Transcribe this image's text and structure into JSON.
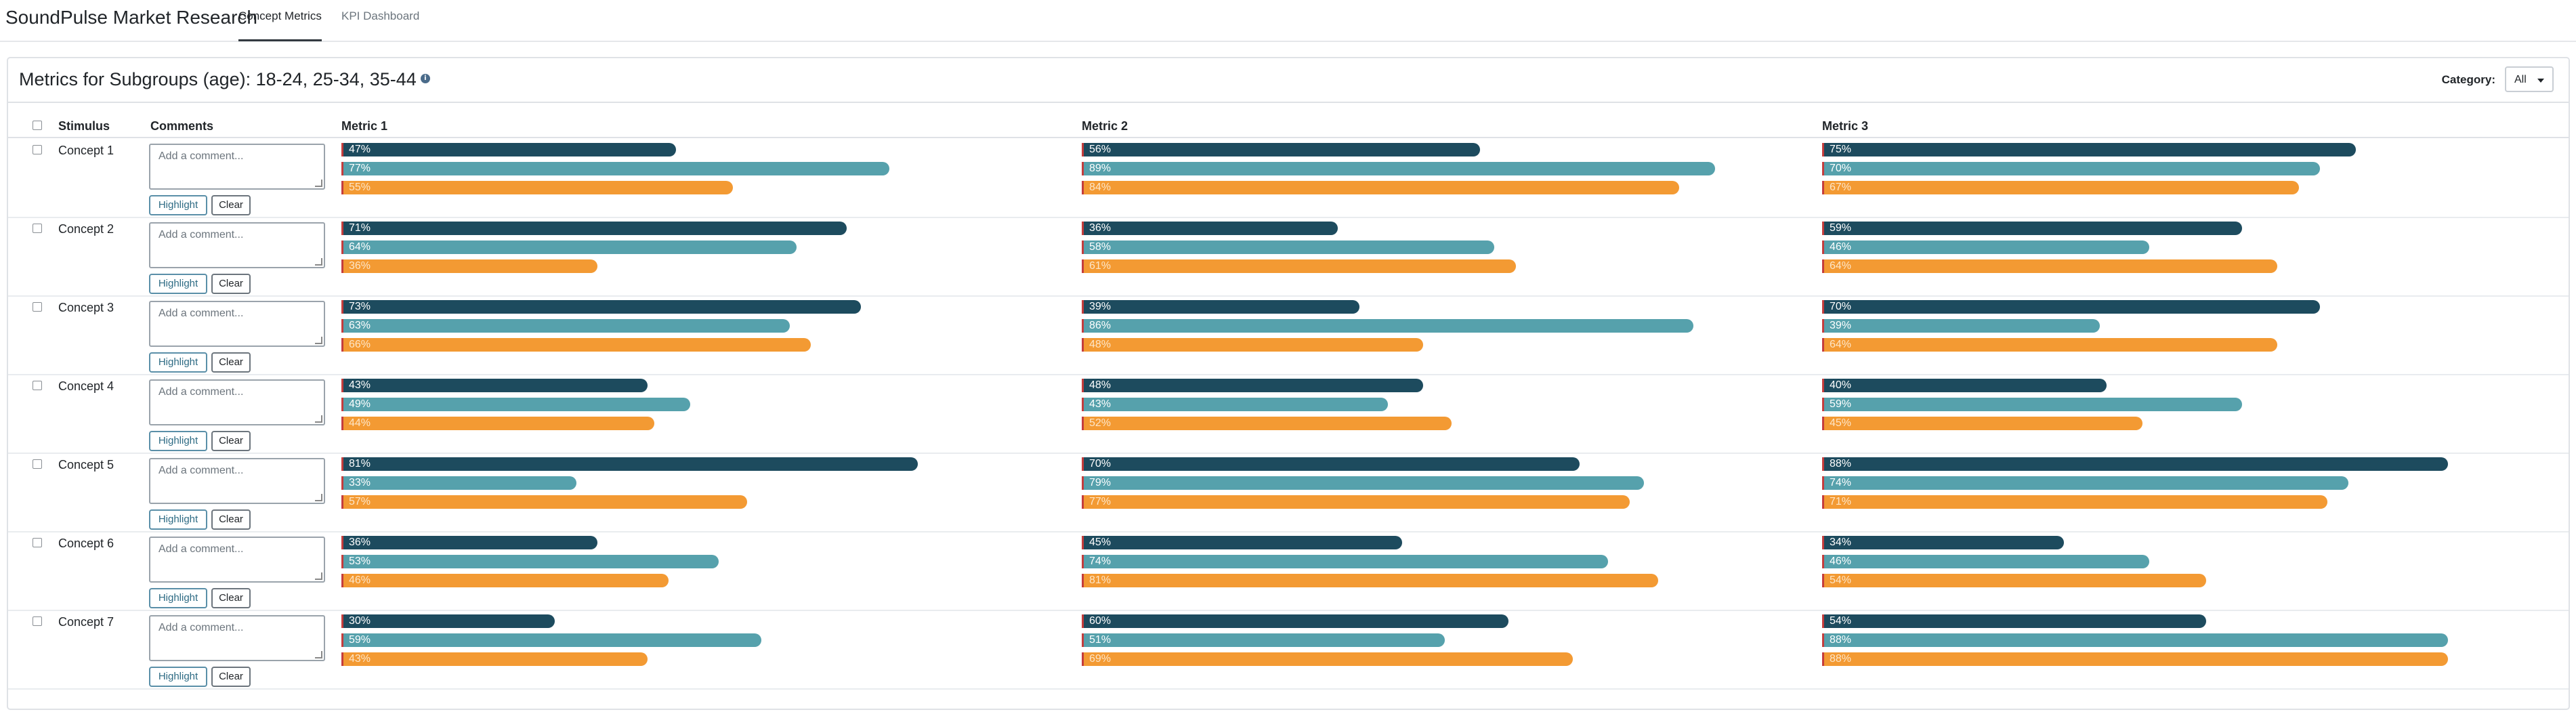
{
  "header": {
    "brand": "SoundPulse Market Research",
    "tabs": [
      {
        "label": "Concept Metrics",
        "active": true
      },
      {
        "label": "KPI Dashboard",
        "active": false
      }
    ]
  },
  "card": {
    "title": "Metrics for Subgroups (age): 18-24, 25-34, 35-44",
    "info_icon": "i",
    "category_label": "Category:",
    "category_value": "All"
  },
  "table": {
    "columns": [
      "Stimulus",
      "Comments",
      "Metric 1",
      "Metric 2",
      "Metric 3"
    ],
    "comment_placeholder": "Add a comment...",
    "highlight_label": "Highlight",
    "clear_label": "Clear"
  },
  "colors": {
    "subgroup_18_24": "#1d4b5e",
    "subgroup_25_34": "#56a1ac",
    "subgroup_35_44": "#f39a33",
    "marker": "#c43d3d"
  },
  "chart_data": {
    "type": "bar",
    "orientation": "horizontal",
    "xlim": [
      0,
      100
    ],
    "unit": "%",
    "series": [
      {
        "subgroup": "18-24",
        "color": "#1d4b5e"
      },
      {
        "subgroup": "25-34",
        "color": "#56a1ac"
      },
      {
        "subgroup": "35-44",
        "color": "#f39a33"
      }
    ],
    "rows": [
      {
        "stimulus": "Concept 1",
        "metrics": [
          [
            47,
            77,
            55
          ],
          [
            56,
            89,
            84
          ],
          [
            75,
            70,
            67
          ]
        ]
      },
      {
        "stimulus": "Concept 2",
        "metrics": [
          [
            71,
            64,
            36
          ],
          [
            36,
            58,
            61
          ],
          [
            59,
            46,
            64
          ]
        ]
      },
      {
        "stimulus": "Concept 3",
        "metrics": [
          [
            73,
            63,
            66
          ],
          [
            39,
            86,
            48
          ],
          [
            70,
            39,
            64
          ]
        ]
      },
      {
        "stimulus": "Concept 4",
        "metrics": [
          [
            43,
            49,
            44
          ],
          [
            48,
            43,
            52
          ],
          [
            40,
            59,
            45
          ]
        ]
      },
      {
        "stimulus": "Concept 5",
        "metrics": [
          [
            81,
            33,
            57
          ],
          [
            70,
            79,
            77
          ],
          [
            88,
            74,
            71
          ]
        ]
      },
      {
        "stimulus": "Concept 6",
        "metrics": [
          [
            36,
            53,
            46
          ],
          [
            45,
            74,
            81
          ],
          [
            34,
            46,
            54
          ]
        ]
      },
      {
        "stimulus": "Concept 7",
        "metrics": [
          [
            30,
            59,
            43
          ],
          [
            60,
            51,
            69
          ],
          [
            54,
            88,
            88
          ]
        ]
      }
    ]
  }
}
